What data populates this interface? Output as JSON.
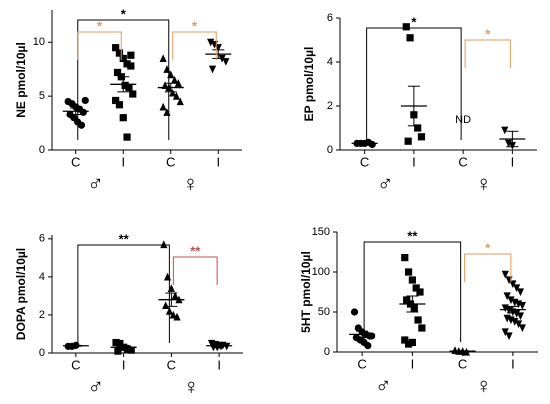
{
  "chart_data": [
    {
      "type": "dot",
      "ylabel": "NE pmol/10µl",
      "categories": [
        "C",
        "I",
        "C",
        "I"
      ],
      "groups": [
        "♂",
        "♀"
      ],
      "values": [
        [
          4.5,
          4.3,
          4.0,
          3.8,
          3.5,
          3.3,
          3.0,
          2.6,
          2.3,
          4.6
        ],
        [
          9.5,
          9.0,
          8.5,
          8.0,
          7.8,
          7.2,
          6.8,
          6.0,
          5.8,
          5.2,
          4.6,
          4.2,
          3.0,
          1.2,
          8.8
        ],
        [
          8.5,
          7.5,
          7.0,
          6.5,
          6.2,
          6.0,
          5.8,
          5.3,
          5.0,
          4.5,
          4.0,
          3.5
        ],
        [
          10.0,
          9.8,
          9.5,
          8.5,
          8.2,
          7.5
        ]
      ],
      "means": [
        3.6,
        6.1,
        5.8,
        8.9
      ],
      "errors": [
        0.3,
        0.7,
        0.4,
        0.4
      ],
      "ylim": [
        0,
        13
      ],
      "yticks": [
        0,
        5,
        10
      ],
      "annotations": [
        {
          "label": "*",
          "from": 0,
          "to": 2,
          "color": "#000000"
        },
        {
          "label": "*",
          "from": 0,
          "to": 1,
          "color": "#e39a5c"
        },
        {
          "label": "*",
          "from": 2,
          "to": 3,
          "color": "#e39a5c"
        }
      ]
    },
    {
      "type": "dot",
      "ylabel": "EP pmol/10µl",
      "categories": [
        "C",
        "I",
        "C",
        "I"
      ],
      "groups": [
        "♂",
        "♀"
      ],
      "values": [
        [
          0.3,
          0.3,
          0.3,
          0.35,
          0.25
        ],
        [
          5.6,
          5.1,
          1.6,
          1.0,
          0.6,
          0.4
        ],
        [],
        [
          0.9,
          0.3,
          0.2
        ]
      ],
      "means": [
        0.3,
        2.0,
        null,
        0.5
      ],
      "errors": [
        0.02,
        0.9,
        null,
        0.35
      ],
      "ylim": [
        0,
        6
      ],
      "yticks": [
        0,
        2,
        4,
        6
      ],
      "missing": {
        "label": "ND",
        "category": 2
      },
      "annotations": [
        {
          "label": "*",
          "from": 0,
          "to": 2,
          "color": "#000000"
        },
        {
          "label": "*",
          "from": 2,
          "to": 3,
          "color": "#e39a5c"
        }
      ]
    },
    {
      "type": "dot",
      "ylabel": "DOPA pmol/10µl",
      "categories": [
        "C",
        "I",
        "C",
        "I"
      ],
      "groups": [
        "♂",
        "♀"
      ],
      "values": [
        [
          0.35,
          0.35,
          0.4
        ],
        [
          0.55,
          0.5,
          0.3,
          0.2,
          0.15,
          0.1
        ],
        [
          5.7,
          4.0,
          3.4,
          3.0,
          2.8,
          2.5,
          2.2,
          2.0,
          1.9
        ],
        [
          0.5,
          0.45,
          0.4,
          0.4,
          0.35,
          0.3,
          0.3,
          0.35
        ]
      ],
      "means": [
        0.38,
        0.3,
        2.8,
        0.38
      ],
      "errors": [
        0.02,
        0.1,
        0.35,
        0.03
      ],
      "ylim": [
        0,
        6.2
      ],
      "yticks": [
        0,
        2,
        4,
        6
      ],
      "annotations": [
        {
          "label": "**",
          "from": 0,
          "to": 2,
          "color": "#000000"
        },
        {
          "label": "**",
          "from": 2,
          "to": 3,
          "color": "#c0504d"
        }
      ]
    },
    {
      "type": "dot",
      "ylabel": "5HT pmol/10µl",
      "categories": [
        "C",
        "I",
        "C",
        "I"
      ],
      "groups": [
        "♂",
        "♀"
      ],
      "values": [
        [
          50,
          30,
          25,
          22,
          20,
          18,
          15,
          12,
          8,
          20
        ],
        [
          118,
          100,
          90,
          80,
          75,
          65,
          60,
          55,
          40,
          30,
          15,
          10,
          12
        ],
        [
          2,
          1,
          1,
          0
        ],
        [
          97,
          90,
          85,
          80,
          75,
          70,
          65,
          62,
          60,
          58,
          55,
          52,
          50,
          48,
          45,
          42,
          40,
          38,
          35,
          30,
          25,
          20
        ]
      ],
      "means": [
        22,
        60,
        1,
        53
      ],
      "errors": [
        4,
        10,
        0.5,
        4
      ],
      "ylim": [
        0,
        150
      ],
      "yticks": [
        0,
        50,
        100,
        150
      ],
      "annotations": [
        {
          "label": "**",
          "from": 0,
          "to": 2,
          "color": "#000000"
        },
        {
          "label": "*",
          "from": 2,
          "to": 3,
          "color": "#e39a5c"
        }
      ]
    }
  ]
}
